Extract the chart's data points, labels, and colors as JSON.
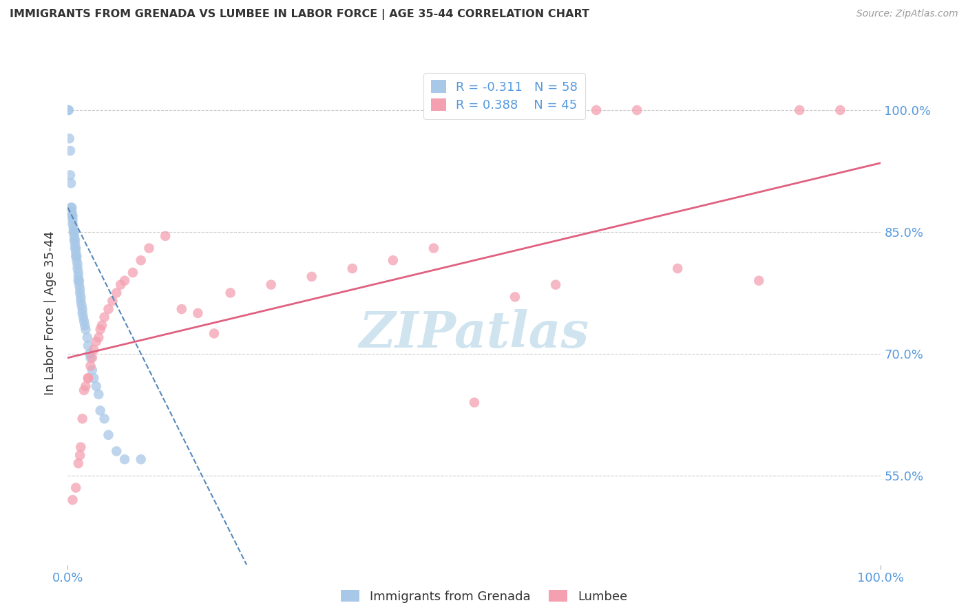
{
  "title": "IMMIGRANTS FROM GRENADA VS LUMBEE IN LABOR FORCE | AGE 35-44 CORRELATION CHART",
  "source": "Source: ZipAtlas.com",
  "ylabel": "In Labor Force | Age 35-44",
  "y_tick_labels_right": [
    "100.0%",
    "85.0%",
    "70.0%",
    "55.0%"
  ],
  "y_tick_values_right": [
    1.0,
    0.85,
    0.7,
    0.55
  ],
  "xlim": [
    0.0,
    1.0
  ],
  "ylim": [
    0.44,
    1.06
  ],
  "grenada_R": -0.311,
  "grenada_N": 58,
  "lumbee_R": 0.388,
  "lumbee_N": 45,
  "grenada_dot_color": "#a8c8e8",
  "lumbee_dot_color": "#f4a0b0",
  "grenada_line_color": "#5588bb",
  "lumbee_line_color": "#e06080",
  "title_color": "#333333",
  "source_color": "#999999",
  "axis_label_color": "#333333",
  "right_tick_color": "#5599dd",
  "bottom_tick_color": "#5599dd",
  "watermark_color": "#d0e4f0",
  "background_color": "#ffffff",
  "legend_R_color_grenada": "#5599dd",
  "legend_R_color_lumbee": "#e06080",
  "grenada_x": [
    0.001,
    0.001,
    0.002,
    0.003,
    0.003,
    0.004,
    0.004,
    0.005,
    0.005,
    0.005,
    0.006,
    0.006,
    0.006,
    0.007,
    0.007,
    0.008,
    0.008,
    0.008,
    0.009,
    0.009,
    0.009,
    0.01,
    0.01,
    0.01,
    0.011,
    0.011,
    0.012,
    0.012,
    0.013,
    0.013,
    0.013,
    0.014,
    0.014,
    0.015,
    0.015,
    0.016,
    0.016,
    0.017,
    0.018,
    0.018,
    0.019,
    0.02,
    0.021,
    0.022,
    0.024,
    0.025,
    0.027,
    0.028,
    0.03,
    0.032,
    0.035,
    0.038,
    0.04,
    0.045,
    0.05,
    0.06,
    0.07,
    0.09
  ],
  "grenada_y": [
    1.0,
    1.0,
    0.965,
    0.95,
    0.92,
    0.91,
    0.88,
    0.88,
    0.875,
    0.87,
    0.87,
    0.865,
    0.86,
    0.855,
    0.85,
    0.85,
    0.845,
    0.84,
    0.84,
    0.835,
    0.83,
    0.83,
    0.825,
    0.82,
    0.82,
    0.815,
    0.81,
    0.805,
    0.8,
    0.795,
    0.79,
    0.79,
    0.785,
    0.78,
    0.775,
    0.77,
    0.765,
    0.76,
    0.755,
    0.75,
    0.745,
    0.74,
    0.735,
    0.73,
    0.72,
    0.71,
    0.7,
    0.695,
    0.68,
    0.67,
    0.66,
    0.65,
    0.63,
    0.62,
    0.6,
    0.58,
    0.57,
    0.57
  ],
  "lumbee_x": [
    0.006,
    0.01,
    0.013,
    0.015,
    0.016,
    0.018,
    0.02,
    0.022,
    0.025,
    0.025,
    0.028,
    0.03,
    0.032,
    0.035,
    0.038,
    0.04,
    0.042,
    0.045,
    0.05,
    0.055,
    0.06,
    0.065,
    0.07,
    0.08,
    0.09,
    0.1,
    0.12,
    0.14,
    0.16,
    0.18,
    0.2,
    0.25,
    0.3,
    0.35,
    0.4,
    0.45,
    0.5,
    0.55,
    0.6,
    0.65,
    0.7,
    0.75,
    0.85,
    0.9,
    0.95
  ],
  "lumbee_y": [
    0.52,
    0.535,
    0.565,
    0.575,
    0.585,
    0.62,
    0.655,
    0.66,
    0.67,
    0.67,
    0.685,
    0.695,
    0.705,
    0.715,
    0.72,
    0.73,
    0.735,
    0.745,
    0.755,
    0.765,
    0.775,
    0.785,
    0.79,
    0.8,
    0.815,
    0.83,
    0.845,
    0.755,
    0.75,
    0.725,
    0.775,
    0.785,
    0.795,
    0.805,
    0.815,
    0.83,
    0.64,
    0.77,
    0.785,
    1.0,
    1.0,
    0.805,
    0.79,
    1.0,
    1.0
  ],
  "grenada_line_x": [
    0.0,
    0.22
  ],
  "grenada_line_y_start": 0.88,
  "grenada_line_y_end": 0.44,
  "lumbee_line_x": [
    0.0,
    1.0
  ],
  "lumbee_line_y_start": 0.695,
  "lumbee_line_y_end": 0.935
}
